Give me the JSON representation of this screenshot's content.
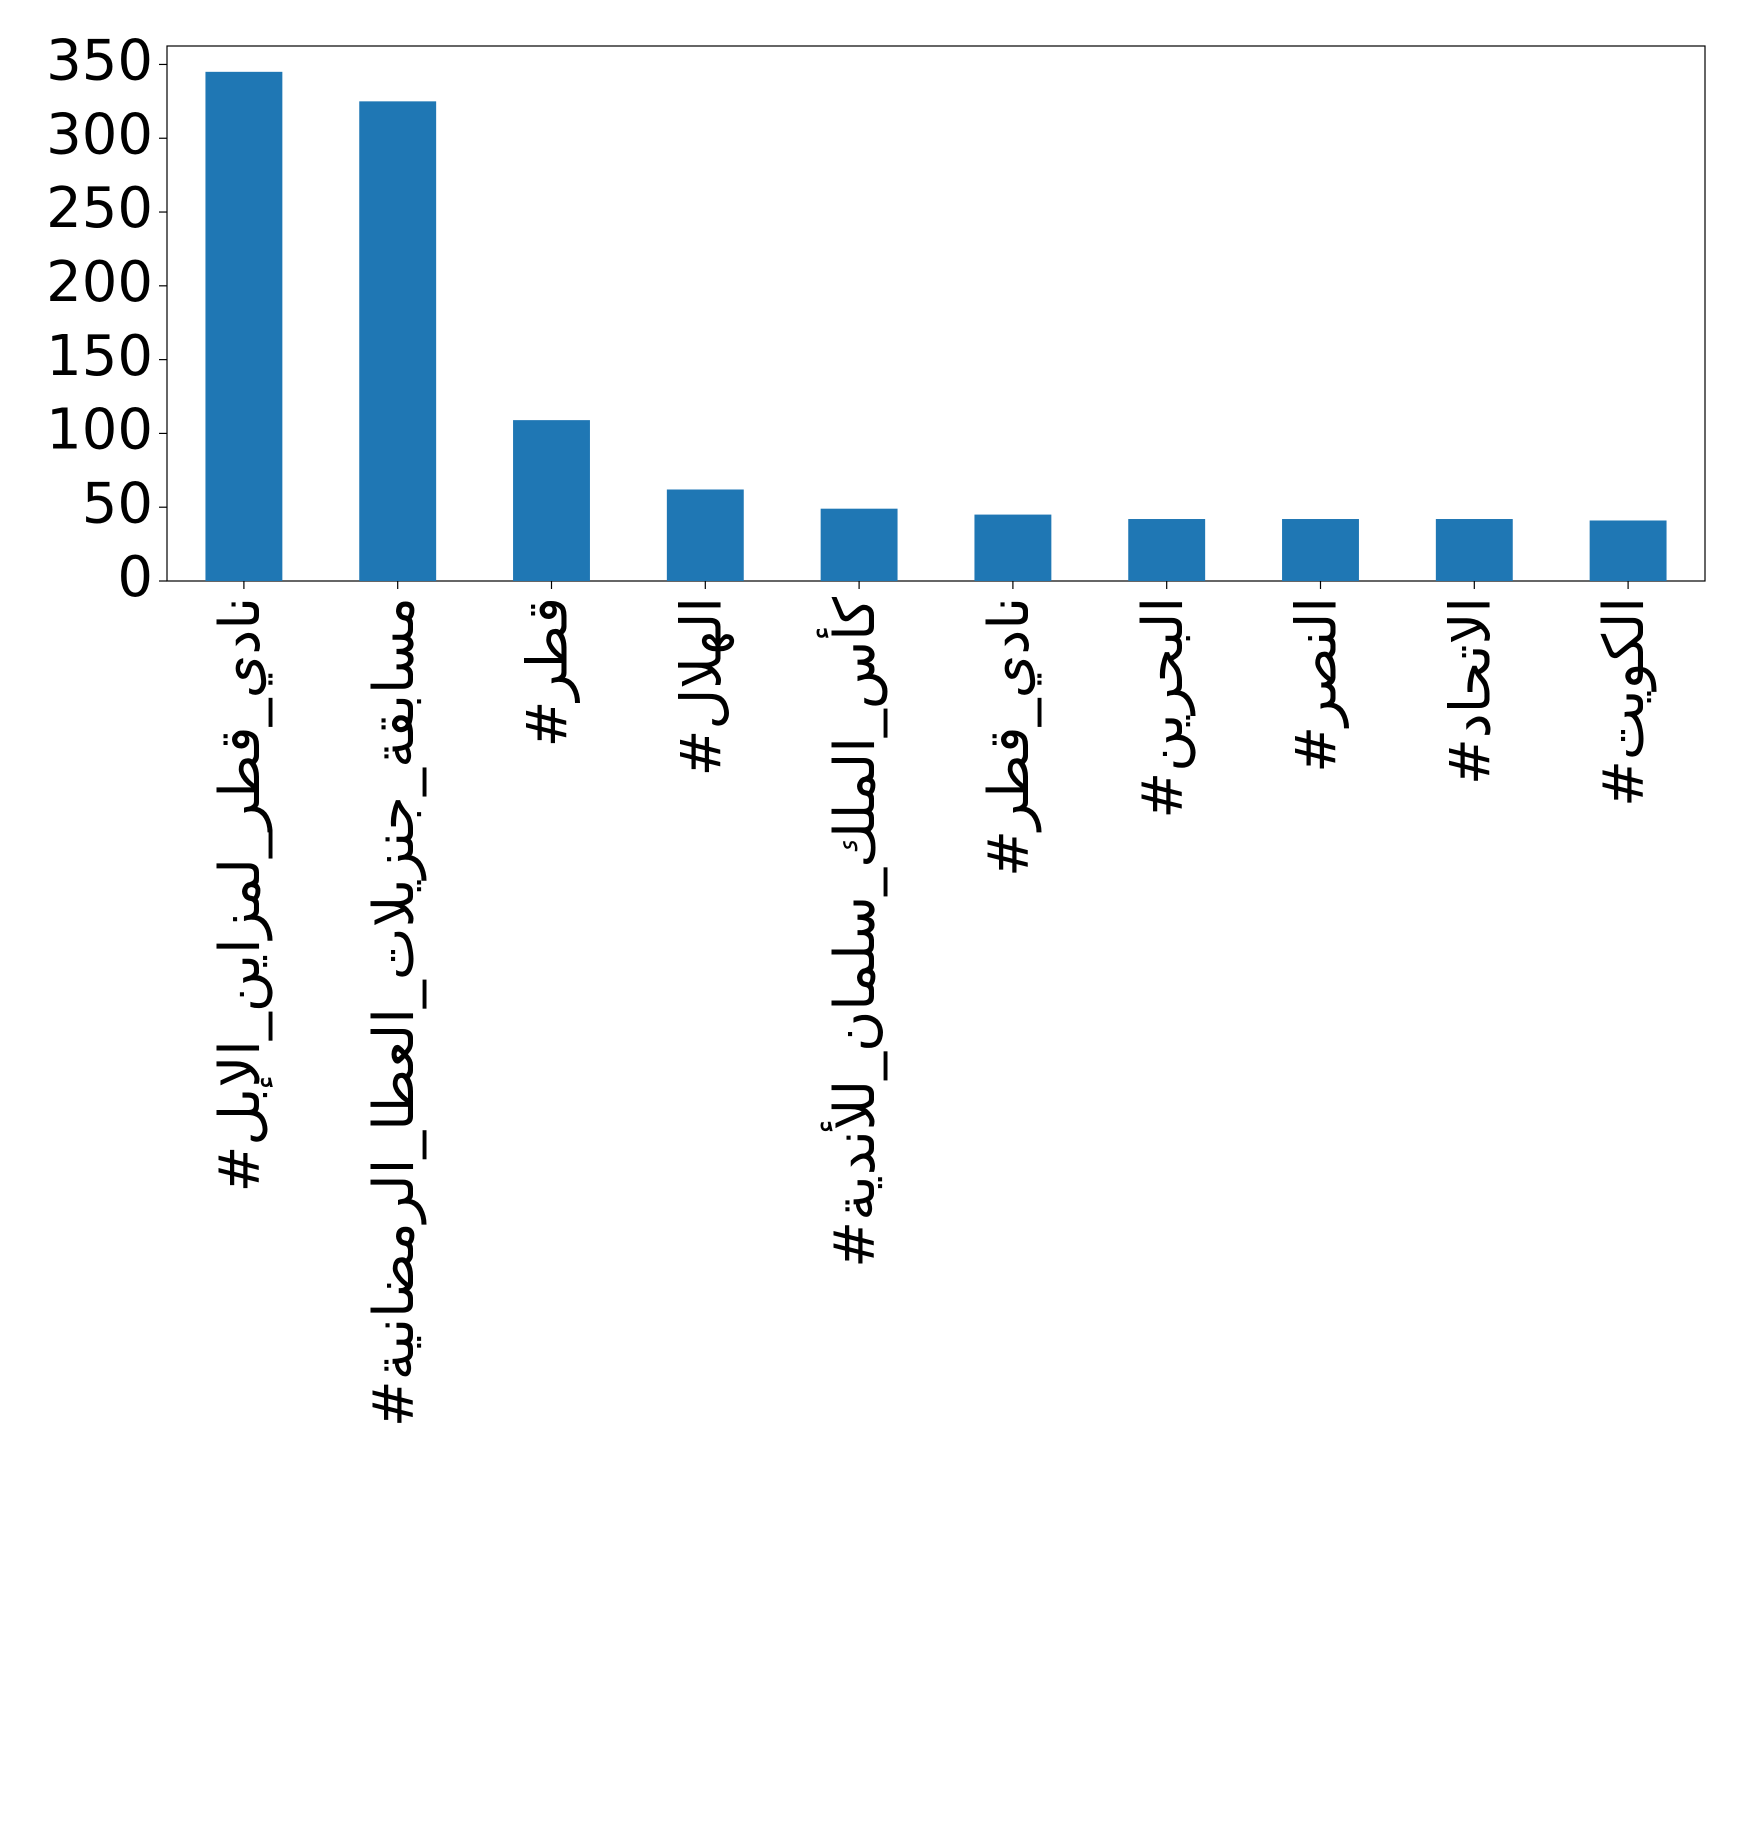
{
  "chart_data": {
    "type": "bar",
    "categories": [
      "#نادي_قطر_لمزاين_الإبل",
      "#مسابقة_جنزيلات_العطا_الرمضانية",
      "#قطر",
      "#الهلال",
      "#كأس_الملك_سلمان_للأندية",
      "#نادي_قطر",
      "#البحرين",
      "#النصر",
      "#الاتحاد",
      "#الكويت"
    ],
    "values": [
      345,
      325,
      109,
      62,
      49,
      45,
      42,
      42,
      42,
      41
    ],
    "color": "#1f77b4",
    "ylim": [
      0,
      362.5
    ],
    "yticks": [
      0,
      50,
      100,
      150,
      200,
      250,
      300,
      350
    ],
    "grid": false
  }
}
